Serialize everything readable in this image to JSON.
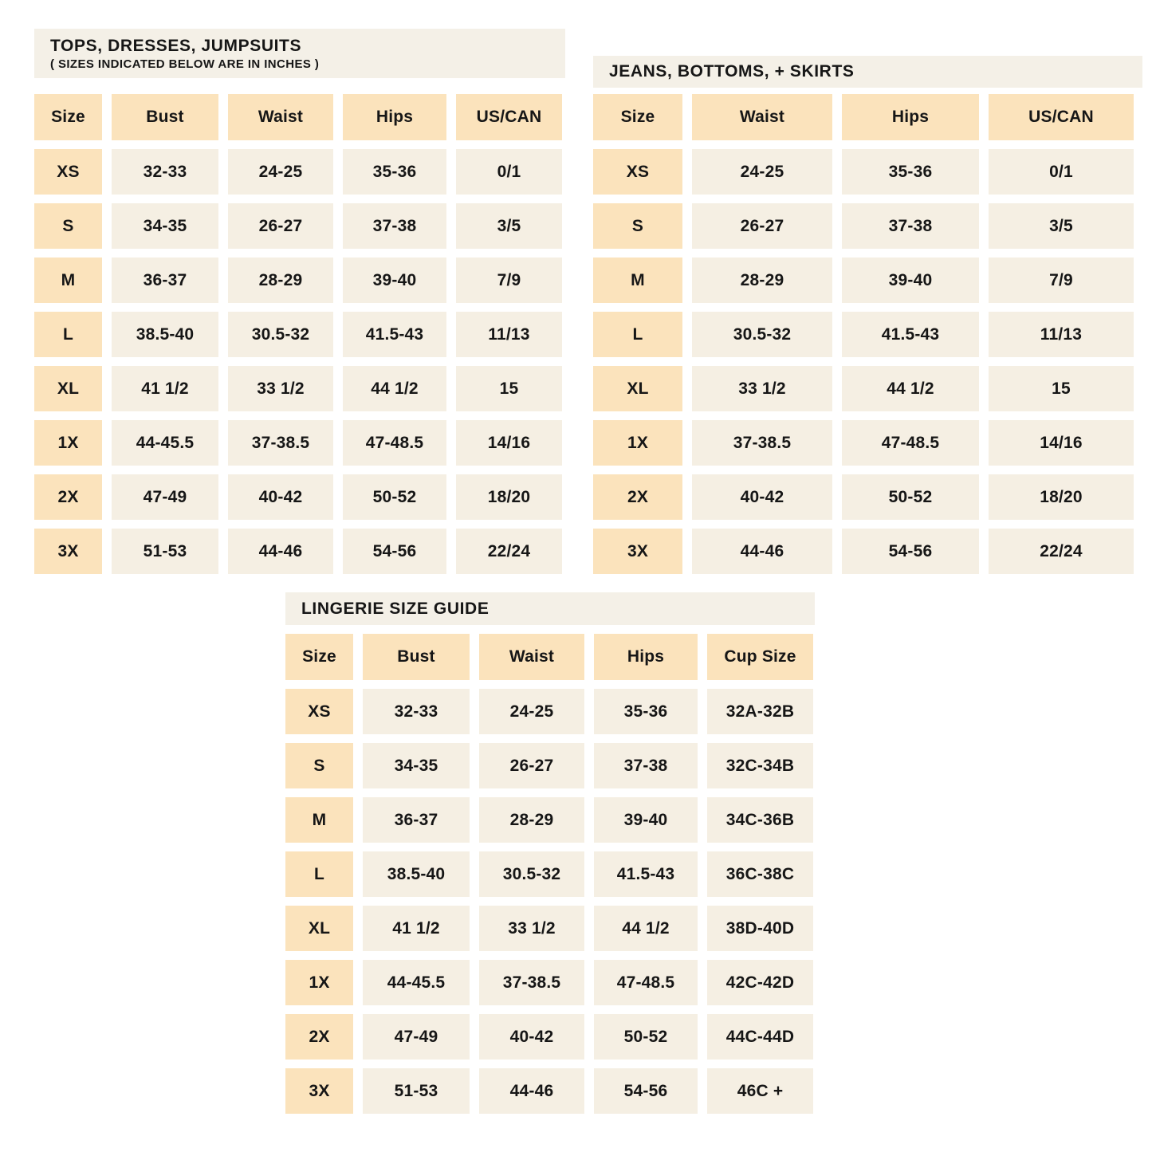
{
  "colors": {
    "header_cell": "#fbe3bc",
    "data_cell": "#f5efe3",
    "title_bar": "#f4f0e7",
    "text": "#161616",
    "background": "#ffffff"
  },
  "tables": [
    {
      "id": "tops",
      "title": "TOPS, DRESSES, JUMPSUITS",
      "subtitle": "( SIZES INDICATED BELOW ARE IN INCHES )",
      "columns": [
        "Size",
        "Bust",
        "Waist",
        "Hips",
        "US/CAN"
      ],
      "rows": [
        [
          "XS",
          "32-33",
          "24-25",
          "35-36",
          "0/1"
        ],
        [
          "S",
          "34-35",
          "26-27",
          "37-38",
          "3/5"
        ],
        [
          "M",
          "36-37",
          "28-29",
          "39-40",
          "7/9"
        ],
        [
          "L",
          "38.5-40",
          "30.5-32",
          "41.5-43",
          "11/13"
        ],
        [
          "XL",
          "41 1/2",
          "33 1/2",
          "44 1/2",
          "15"
        ],
        [
          "1X",
          "44-45.5",
          "37-38.5",
          "47-48.5",
          "14/16"
        ],
        [
          "2X",
          "47-49",
          "40-42",
          "50-52",
          "18/20"
        ],
        [
          "3X",
          "51-53",
          "44-46",
          "54-56",
          "22/24"
        ]
      ]
    },
    {
      "id": "jeans",
      "title": "JEANS, BOTTOMS, + SKIRTS",
      "subtitle": "",
      "columns": [
        "Size",
        "Waist",
        "Hips",
        "US/CAN"
      ],
      "rows": [
        [
          "XS",
          "24-25",
          "35-36",
          "0/1"
        ],
        [
          "S",
          "26-27",
          "37-38",
          "3/5"
        ],
        [
          "M",
          "28-29",
          "39-40",
          "7/9"
        ],
        [
          "L",
          "30.5-32",
          "41.5-43",
          "11/13"
        ],
        [
          "XL",
          "33 1/2",
          "44 1/2",
          "15"
        ],
        [
          "1X",
          "37-38.5",
          "47-48.5",
          "14/16"
        ],
        [
          "2X",
          "40-42",
          "50-52",
          "18/20"
        ],
        [
          "3X",
          "44-46",
          "54-56",
          "22/24"
        ]
      ]
    },
    {
      "id": "lingerie",
      "title": "LINGERIE SIZE GUIDE",
      "subtitle": "",
      "columns": [
        "Size",
        "Bust",
        "Waist",
        "Hips",
        "Cup Size"
      ],
      "rows": [
        [
          "XS",
          "32-33",
          "24-25",
          "35-36",
          "32A-32B"
        ],
        [
          "S",
          "34-35",
          "26-27",
          "37-38",
          "32C-34B"
        ],
        [
          "M",
          "36-37",
          "28-29",
          "39-40",
          "34C-36B"
        ],
        [
          "L",
          "38.5-40",
          "30.5-32",
          "41.5-43",
          "36C-38C"
        ],
        [
          "XL",
          "41 1/2",
          "33 1/2",
          "44 1/2",
          "38D-40D"
        ],
        [
          "1X",
          "44-45.5",
          "37-38.5",
          "47-48.5",
          "42C-42D"
        ],
        [
          "2X",
          "47-49",
          "40-42",
          "50-52",
          "44C-44D"
        ],
        [
          "3X",
          "51-53",
          "44-46",
          "54-56",
          "46C +"
        ]
      ]
    }
  ]
}
